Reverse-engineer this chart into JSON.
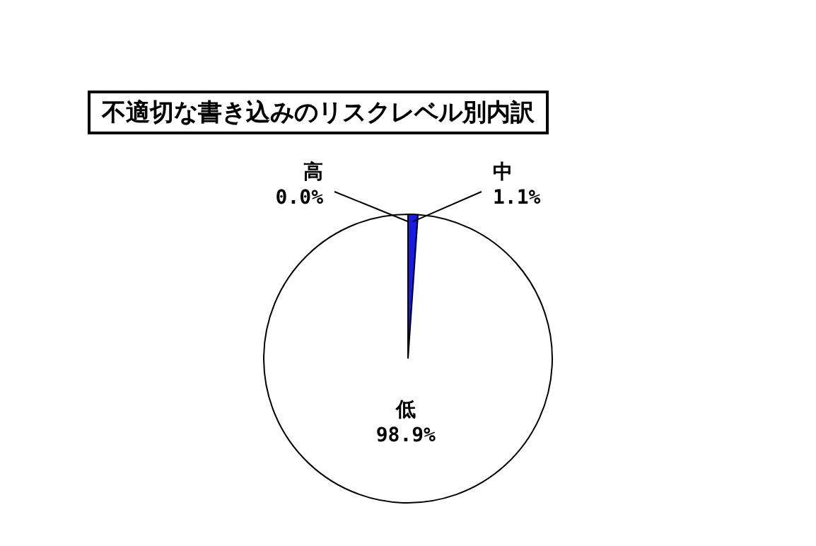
{
  "chart_data": {
    "type": "pie",
    "title": "不適切な書き込みのリスクレベル別内訳",
    "categories": [
      "高",
      "中",
      "低"
    ],
    "values": [
      0.0,
      1.1,
      98.9
    ],
    "colors": [
      "#808080",
      "#1a1ae6",
      "#ffffff"
    ],
    "value_labels": [
      "0.0%",
      "1.1%",
      "98.9%"
    ],
    "legend": false
  }
}
